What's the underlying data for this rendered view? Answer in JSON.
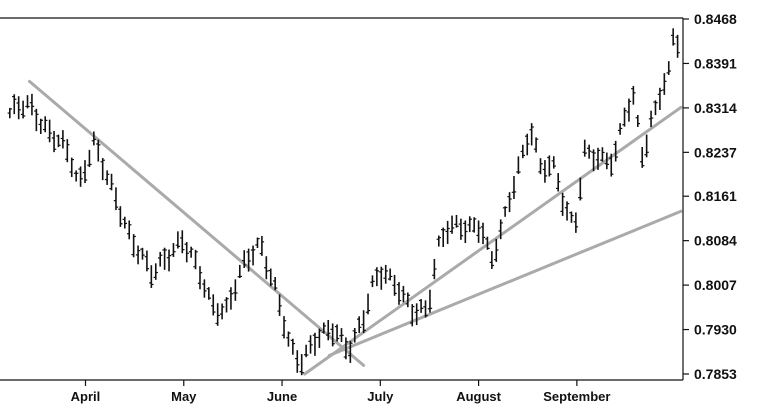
{
  "chart_data": {
    "type": "line",
    "title": "",
    "xlabel": "",
    "ylabel": "",
    "grid": false,
    "x_ticks": [
      "April",
      "May",
      "June",
      "July",
      "August",
      "September"
    ],
    "y_ticks": [
      0.8468,
      0.8391,
      0.8314,
      0.8237,
      0.8161,
      0.8084,
      0.8007,
      0.793,
      0.7853
    ],
    "y_tick_labels": [
      "0.8468",
      "0.8391",
      "0.8314",
      "0.8237",
      "0.8161",
      "0.8084",
      "0.8007",
      "0.7930",
      "0.7853"
    ],
    "ylim": [
      0.7853,
      0.8468
    ],
    "x_range_months": [
      2.35,
      9.18
    ],
    "price_series": {
      "style": "OHLC bars",
      "color": "#111111",
      "points": [
        {
          "x": 2.35,
          "y": 0.8305
        },
        {
          "x": 2.55,
          "y": 0.8318
        },
        {
          "x": 2.75,
          "y": 0.8275
        },
        {
          "x": 2.95,
          "y": 0.8232
        },
        {
          "x": 3.05,
          "y": 0.818
        },
        {
          "x": 3.2,
          "y": 0.826
        },
        {
          "x": 3.35,
          "y": 0.8185
        },
        {
          "x": 3.55,
          "y": 0.8105
        },
        {
          "x": 3.7,
          "y": 0.8055
        },
        {
          "x": 3.8,
          "y": 0.802
        },
        {
          "x": 4.0,
          "y": 0.807
        },
        {
          "x": 4.1,
          "y": 0.809
        },
        {
          "x": 4.25,
          "y": 0.8035
        },
        {
          "x": 4.4,
          "y": 0.7975
        },
        {
          "x": 4.55,
          "y": 0.7965
        },
        {
          "x": 4.75,
          "y": 0.8045
        },
        {
          "x": 4.9,
          "y": 0.8085
        },
        {
          "x": 5.05,
          "y": 0.8
        },
        {
          "x": 5.2,
          "y": 0.7895
        },
        {
          "x": 5.3,
          "y": 0.7875
        },
        {
          "x": 5.45,
          "y": 0.7915
        },
        {
          "x": 5.65,
          "y": 0.7925
        },
        {
          "x": 5.8,
          "y": 0.79
        },
        {
          "x": 5.95,
          "y": 0.795
        },
        {
          "x": 6.05,
          "y": 0.8005
        },
        {
          "x": 6.15,
          "y": 0.803
        },
        {
          "x": 6.3,
          "y": 0.801
        },
        {
          "x": 6.45,
          "y": 0.7955
        },
        {
          "x": 6.6,
          "y": 0.796
        },
        {
          "x": 6.7,
          "y": 0.8075
        },
        {
          "x": 6.8,
          "y": 0.811
        },
        {
          "x": 7.0,
          "y": 0.81
        },
        {
          "x": 7.15,
          "y": 0.8115
        },
        {
          "x": 7.25,
          "y": 0.805
        },
        {
          "x": 7.4,
          "y": 0.8125
        },
        {
          "x": 7.5,
          "y": 0.8195
        },
        {
          "x": 7.65,
          "y": 0.8285
        },
        {
          "x": 7.75,
          "y": 0.821
        },
        {
          "x": 7.9,
          "y": 0.8205
        },
        {
          "x": 8.0,
          "y": 0.814
        },
        {
          "x": 8.1,
          "y": 0.8115
        },
        {
          "x": 8.2,
          "y": 0.8235
        },
        {
          "x": 8.35,
          "y": 0.822
        },
        {
          "x": 8.5,
          "y": 0.823
        },
        {
          "x": 8.6,
          "y": 0.8305
        },
        {
          "x": 8.7,
          "y": 0.8325
        },
        {
          "x": 8.8,
          "y": 0.8215
        },
        {
          "x": 8.85,
          "y": 0.827
        },
        {
          "x": 8.95,
          "y": 0.834
        },
        {
          "x": 9.05,
          "y": 0.837
        },
        {
          "x": 9.1,
          "y": 0.844
        },
        {
          "x": 9.18,
          "y": 0.841
        }
      ]
    },
    "trendlines": [
      {
        "color": "#aaaaaa",
        "x": [
          2.55,
          5.95
        ],
        "y": [
          0.836,
          0.7868
        ]
      },
      {
        "color": "#aaaaaa",
        "x": [
          5.35,
          9.18
        ],
        "y": [
          0.7853,
          0.8315
        ]
      },
      {
        "color": "#aaaaaa",
        "x": [
          5.6,
          9.18
        ],
        "y": [
          0.7885,
          0.8135
        ]
      }
    ]
  }
}
